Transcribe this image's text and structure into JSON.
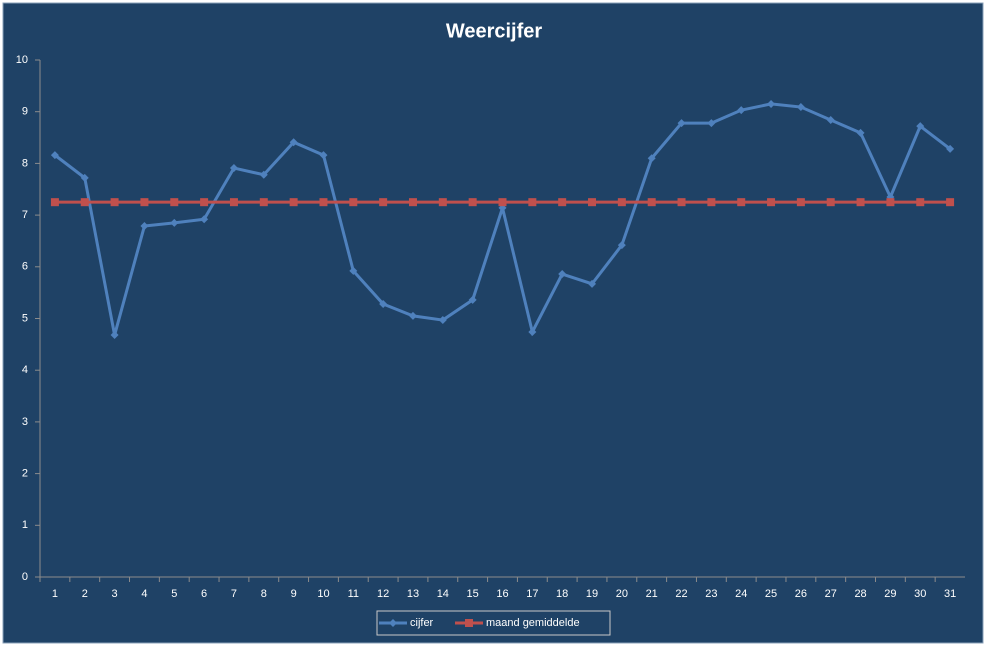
{
  "chart_data": {
    "type": "line",
    "title": "Weercijfer",
    "categories": [
      "1",
      "2",
      "3",
      "4",
      "5",
      "6",
      "7",
      "8",
      "9",
      "10",
      "11",
      "12",
      "13",
      "14",
      "15",
      "16",
      "17",
      "18",
      "19",
      "20",
      "21",
      "22",
      "23",
      "24",
      "25",
      "26",
      "27",
      "28",
      "29",
      "30",
      "31"
    ],
    "series": [
      {
        "name": "cijfer",
        "color": "#4f81bd",
        "marker": "diamond",
        "values": [
          8.16,
          7.72,
          4.68,
          6.79,
          6.85,
          6.92,
          7.91,
          7.78,
          8.41,
          8.16,
          5.92,
          5.28,
          5.05,
          4.97,
          5.36,
          7.14,
          4.74,
          5.86,
          5.67,
          6.42,
          8.1,
          8.78,
          8.78,
          9.03,
          9.15,
          9.09,
          8.84,
          8.59,
          7.35,
          8.72,
          8.28
        ]
      },
      {
        "name": "maand gemiddelde",
        "color": "#c0504d",
        "marker": "square",
        "values": [
          7.25,
          7.25,
          7.25,
          7.25,
          7.25,
          7.25,
          7.25,
          7.25,
          7.25,
          7.25,
          7.25,
          7.25,
          7.25,
          7.25,
          7.25,
          7.25,
          7.25,
          7.25,
          7.25,
          7.25,
          7.25,
          7.25,
          7.25,
          7.25,
          7.25,
          7.25,
          7.25,
          7.25,
          7.25,
          7.25,
          7.25
        ]
      }
    ],
    "ylim": [
      0,
      10
    ],
    "yticks": [
      0,
      1,
      2,
      3,
      4,
      5,
      6,
      7,
      8,
      9,
      10
    ],
    "grid": false,
    "legend": "bottom"
  }
}
